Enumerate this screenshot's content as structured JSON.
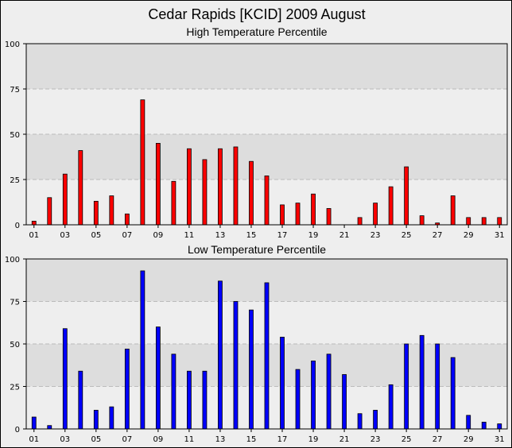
{
  "page": {
    "title": "Cedar Rapids [KCID] 2009 August"
  },
  "chart_data": [
    {
      "type": "bar",
      "title": "High Temperature Percentile",
      "x": [
        1,
        2,
        3,
        4,
        5,
        6,
        7,
        8,
        9,
        10,
        11,
        12,
        13,
        14,
        15,
        16,
        17,
        18,
        19,
        20,
        21,
        22,
        23,
        24,
        25,
        26,
        27,
        28,
        29,
        30,
        31
      ],
      "x_tick_labels": [
        "01",
        "03",
        "05",
        "07",
        "09",
        "11",
        "13",
        "15",
        "17",
        "19",
        "21",
        "23",
        "25",
        "27",
        "29",
        "31"
      ],
      "y_ticks": [
        "0",
        "25",
        "50",
        "75",
        "100"
      ],
      "ylim": [
        0,
        100
      ],
      "grid": true,
      "color": "#ff0000",
      "values": [
        2,
        15,
        28,
        41,
        13,
        16,
        6,
        69,
        45,
        24,
        42,
        36,
        42,
        43,
        35,
        27,
        11,
        12,
        17,
        9,
        0,
        4,
        12,
        21,
        32,
        5,
        1,
        16,
        4,
        4,
        4
      ]
    },
    {
      "type": "bar",
      "title": "Low Temperature Percentile",
      "x": [
        1,
        2,
        3,
        4,
        5,
        6,
        7,
        8,
        9,
        10,
        11,
        12,
        13,
        14,
        15,
        16,
        17,
        18,
        19,
        20,
        21,
        22,
        23,
        24,
        25,
        26,
        27,
        28,
        29,
        30,
        31
      ],
      "x_tick_labels": [
        "01",
        "03",
        "05",
        "07",
        "09",
        "11",
        "13",
        "15",
        "17",
        "19",
        "21",
        "23",
        "25",
        "27",
        "29",
        "31"
      ],
      "y_ticks": [
        "0",
        "25",
        "50",
        "75",
        "100"
      ],
      "ylim": [
        0,
        100
      ],
      "grid": true,
      "color": "#0000ff",
      "values": [
        7,
        2,
        59,
        34,
        11,
        13,
        47,
        93,
        60,
        44,
        34,
        34,
        87,
        75,
        70,
        86,
        54,
        35,
        40,
        44,
        32,
        9,
        11,
        26,
        50,
        55,
        50,
        42,
        8,
        4,
        3
      ]
    }
  ]
}
